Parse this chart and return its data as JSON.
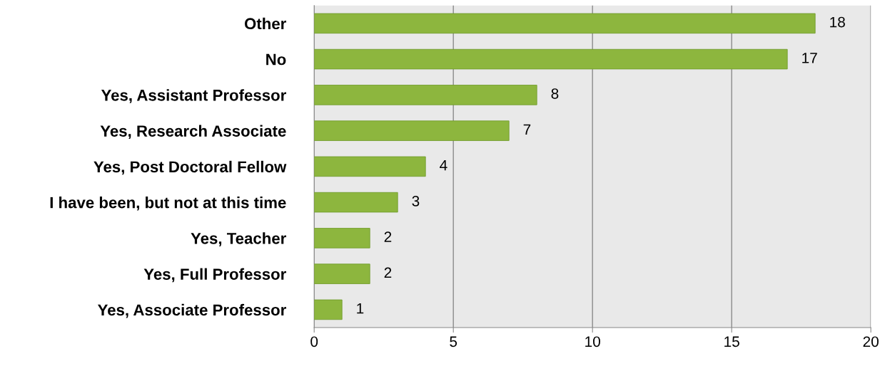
{
  "chart_data": {
    "type": "bar",
    "orientation": "horizontal",
    "categories": [
      "Other",
      "No",
      "Yes, Assistant Professor",
      "Yes, Research Associate",
      "Yes, Post Doctoral Fellow",
      "I have been, but not at this time",
      "Yes, Teacher",
      "Yes, Full Professor",
      "Yes, Associate Professor"
    ],
    "values": [
      18,
      17,
      8,
      7,
      4,
      3,
      2,
      2,
      1
    ],
    "color": "#8db63e",
    "xlim": [
      0,
      20
    ],
    "xticks": [
      0,
      5,
      10,
      15,
      20
    ],
    "grid": "x",
    "data_labels": true
  }
}
